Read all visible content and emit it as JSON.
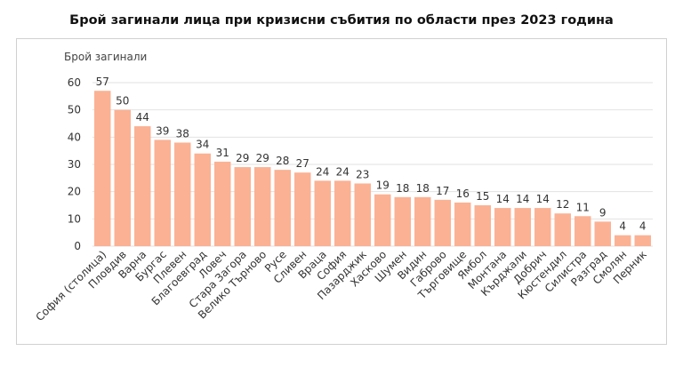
{
  "chart_data": {
    "type": "bar",
    "title": "Брой загинали лица при кризисни събития по области през 2023 година",
    "ylabel": "Брой загинали",
    "xlabel": "",
    "ylim": [
      0,
      60
    ],
    "yticks": [
      0,
      10,
      20,
      30,
      40,
      50,
      60
    ],
    "grid": true,
    "bar_color": "#fbb193",
    "categories": [
      "София (столица)",
      "Пловдив",
      "Варна",
      "Бургас",
      "Плевен",
      "Благоевград",
      "Ловеч",
      "Стара Загора",
      "Велико Търново",
      "Русе",
      "Сливен",
      "Враца",
      "София",
      "Пазарджик",
      "Хасково",
      "Шумен",
      "Видин",
      "Габрово",
      "Търговище",
      "Ямбол",
      "Монтана",
      "Кърджали",
      "Добрич",
      "Кюстендил",
      "Силистра",
      "Разград",
      "Смолян",
      "Перник"
    ],
    "values": [
      57,
      50,
      44,
      39,
      38,
      34,
      31,
      29,
      29,
      28,
      27,
      24,
      24,
      23,
      19,
      18,
      18,
      17,
      16,
      15,
      14,
      14,
      14,
      12,
      11,
      9,
      4,
      4
    ]
  }
}
